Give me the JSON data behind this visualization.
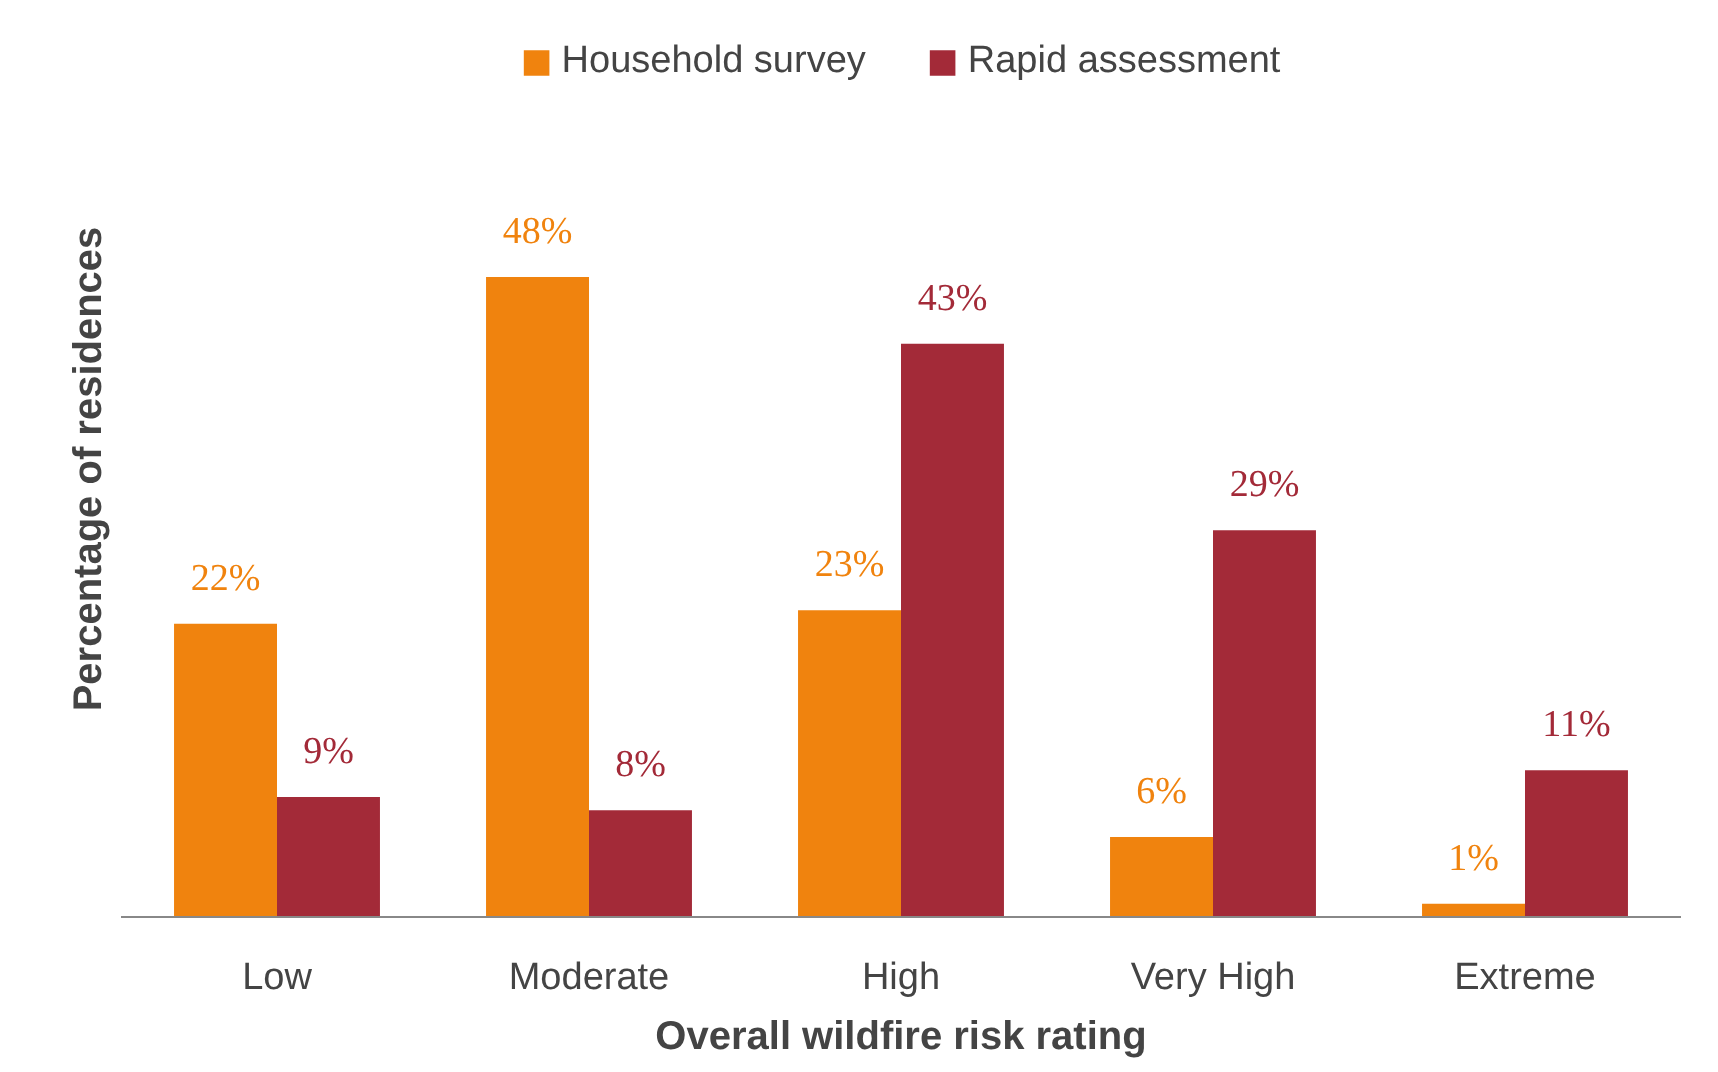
{
  "chart_data": {
    "type": "bar",
    "xlabel": "Overall wildfire risk rating",
    "ylabel": "Percentage of residences",
    "categories": [
      "Low",
      "Moderate",
      "High",
      "Very High",
      "Extreme"
    ],
    "series": [
      {
        "name": "Household survey",
        "color": "#f0830e",
        "values": [
          22,
          48,
          23,
          6,
          1
        ],
        "value_labels": [
          "22%",
          "48%",
          "23%",
          "6%",
          "1%"
        ]
      },
      {
        "name": "Rapid assessment",
        "color": "#a32a38",
        "values": [
          9,
          8,
          43,
          29,
          11
        ],
        "value_labels": [
          "9%",
          "8%",
          "43%",
          "29%",
          "11%"
        ]
      }
    ],
    "legend": "top",
    "grid": false
  }
}
